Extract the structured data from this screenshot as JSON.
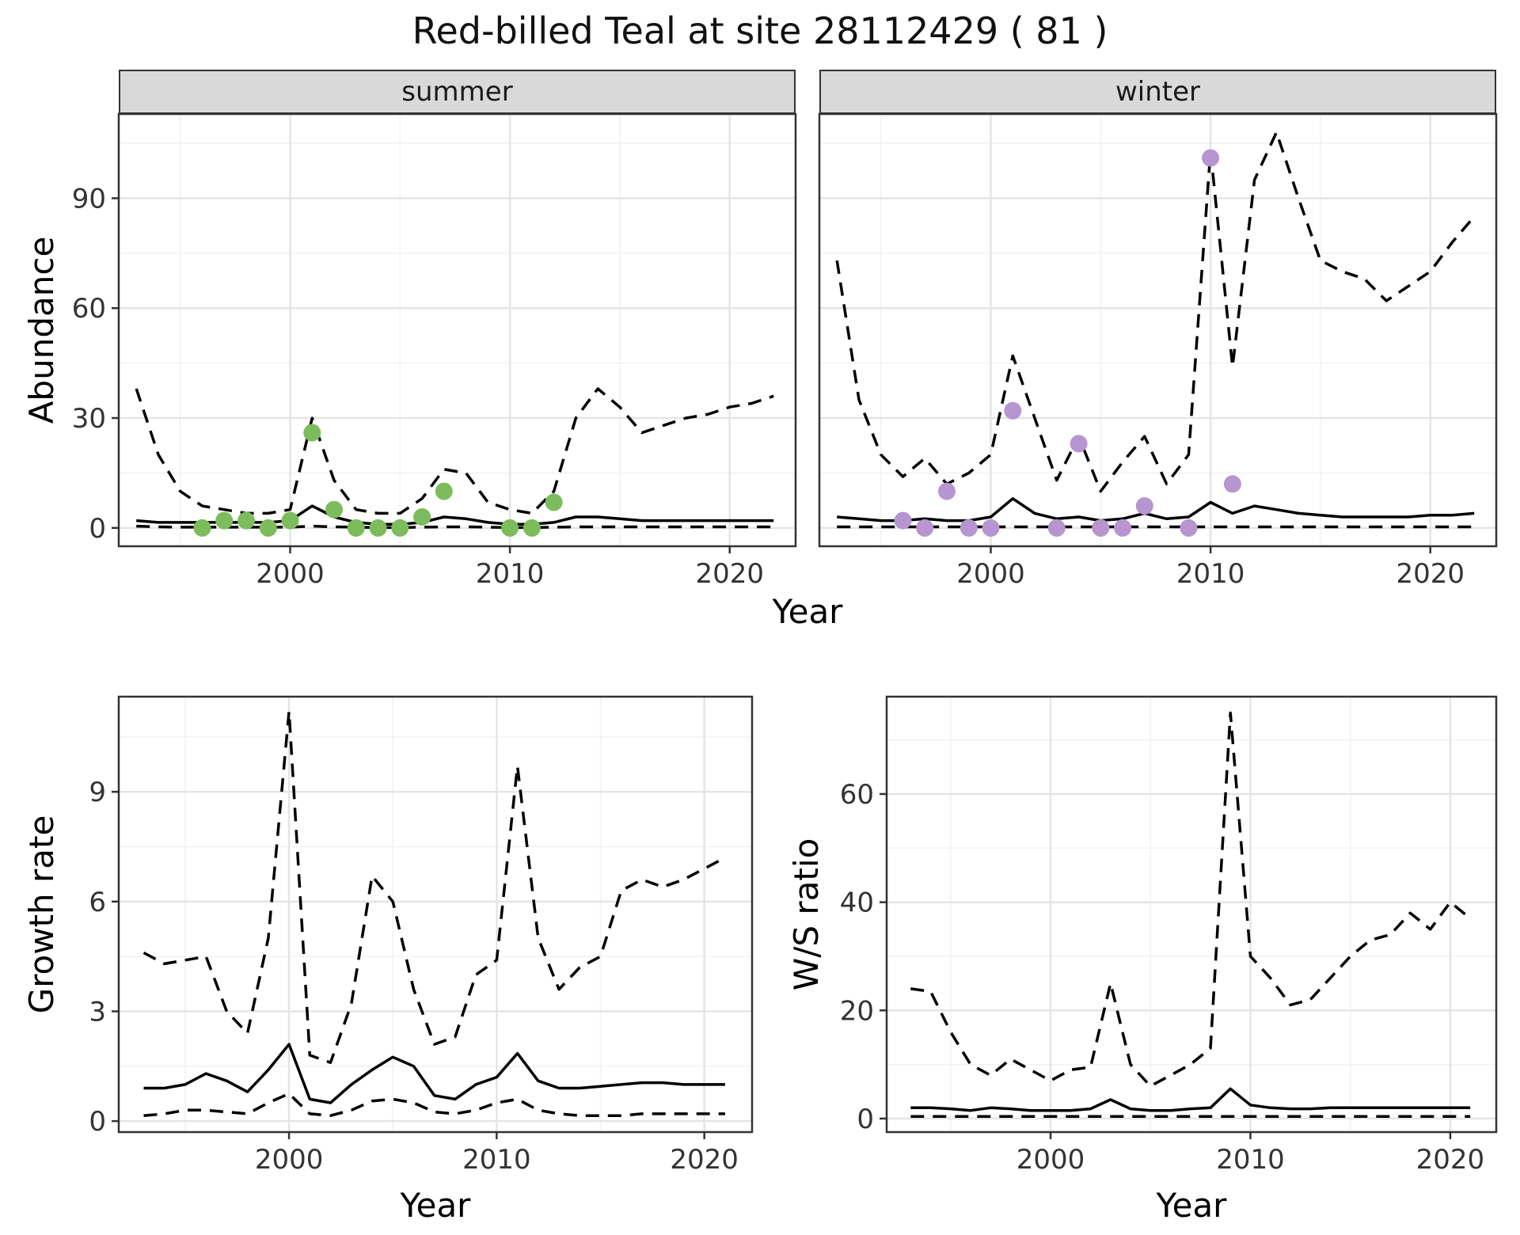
{
  "title": "Red-billed Teal at site 28112429 ( 81 )",
  "facets": [
    "summer",
    "winter"
  ],
  "colors": {
    "summer_points": "#7cbc5c",
    "winter_points": "#b795d0",
    "line": "#000000",
    "strip_bg": "#d9d9d9",
    "grid_major": "#e5e5e5",
    "grid_minor": "#f2f2f2",
    "panel_border": "#333333"
  },
  "chart_data": [
    {
      "type": "line",
      "id": "abundance_summer",
      "facet": "summer",
      "xlabel": "Year",
      "ylabel": "Abundance",
      "xlim": [
        1992.2,
        2023
      ],
      "ylim": [
        -5,
        113
      ],
      "xticks": [
        2000,
        2010,
        2020
      ],
      "yticks": [
        0,
        30,
        60,
        90
      ],
      "x": [
        1993,
        1994,
        1995,
        1996,
        1997,
        1998,
        1999,
        2000,
        2001,
        2002,
        2003,
        2004,
        2005,
        2006,
        2007,
        2008,
        2009,
        2010,
        2011,
        2012,
        2013,
        2014,
        2015,
        2016,
        2017,
        2018,
        2019,
        2020,
        2021,
        2022
      ],
      "series": [
        {
          "name": "upper_ci",
          "style": "dashed",
          "values": [
            38,
            20,
            10,
            6,
            5,
            4,
            4,
            5,
            30,
            13,
            5,
            4,
            4,
            8,
            16,
            15,
            7,
            5,
            4,
            10,
            30,
            38,
            33,
            26,
            28,
            30,
            31,
            33,
            34,
            36
          ]
        },
        {
          "name": "median",
          "style": "solid",
          "values": [
            2,
            1.5,
            1.5,
            1.5,
            1.5,
            1.5,
            1.5,
            2,
            6,
            3,
            1.5,
            1,
            1,
            1.5,
            3,
            2.5,
            1.5,
            1,
            1,
            1.5,
            3,
            3,
            2.5,
            2,
            2,
            2,
            2,
            2,
            2,
            2
          ]
        },
        {
          "name": "lower_ci",
          "style": "dashed",
          "values": [
            0.5,
            0.3,
            0.2,
            0.2,
            0.2,
            0.2,
            0.2,
            0.2,
            0.5,
            0.3,
            0.2,
            0.1,
            0.1,
            0.2,
            0.3,
            0.3,
            0.2,
            0.1,
            0.1,
            0.2,
            0.3,
            0.3,
            0.3,
            0.3,
            0.3,
            0.3,
            0.3,
            0.3,
            0.3,
            0.3
          ]
        }
      ],
      "points": {
        "name": "observed_counts",
        "color": "#7cbc5c",
        "x": [
          1996,
          1997,
          1998,
          1999,
          2000,
          2001,
          2002,
          2003,
          2004,
          2005,
          2006,
          2007,
          2010,
          2011,
          2012
        ],
        "y": [
          0,
          2,
          2,
          0,
          2,
          26,
          5,
          0,
          0,
          0,
          3,
          10,
          0,
          0,
          7
        ]
      }
    },
    {
      "type": "line",
      "id": "abundance_winter",
      "facet": "winter",
      "xlabel": "Year",
      "ylabel": "Abundance",
      "xlim": [
        1992.2,
        2023
      ],
      "ylim": [
        -5,
        113
      ],
      "xticks": [
        2000,
        2010,
        2020
      ],
      "yticks": [
        0,
        30,
        60,
        90
      ],
      "x": [
        1993,
        1994,
        1995,
        1996,
        1997,
        1998,
        1999,
        2000,
        2001,
        2002,
        2003,
        2004,
        2005,
        2006,
        2007,
        2008,
        2009,
        2010,
        2011,
        2012,
        2013,
        2014,
        2015,
        2016,
        2017,
        2018,
        2019,
        2020,
        2021,
        2022
      ],
      "series": [
        {
          "name": "upper_ci",
          "style": "dashed",
          "values": [
            73,
            35,
            20,
            14,
            19,
            12,
            15,
            20,
            47,
            30,
            13,
            25,
            10,
            18,
            25,
            12,
            20,
            103,
            44,
            95,
            108,
            90,
            73,
            70,
            68,
            62,
            66,
            70,
            78,
            85
          ]
        },
        {
          "name": "median",
          "style": "solid",
          "values": [
            3,
            2.5,
            2,
            2,
            2.5,
            2,
            2,
            3,
            8,
            4,
            2.5,
            3,
            2,
            2.5,
            4,
            2.5,
            3,
            7,
            4,
            6,
            5,
            4,
            3.5,
            3,
            3,
            3,
            3,
            3.5,
            3.5,
            4
          ]
        },
        {
          "name": "lower_ci",
          "style": "dashed",
          "values": [
            0.3,
            0.3,
            0.3,
            0.3,
            0.3,
            0.3,
            0.3,
            0.3,
            0.3,
            0.3,
            0.3,
            0.3,
            0.3,
            0.3,
            0.3,
            0.3,
            0.3,
            0.3,
            0.3,
            0.3,
            0.3,
            0.3,
            0.3,
            0.3,
            0.3,
            0.3,
            0.3,
            0.3,
            0.3,
            0.3
          ]
        }
      ],
      "points": {
        "name": "observed_counts",
        "color": "#b795d0",
        "x": [
          1996,
          1997,
          1998,
          1999,
          2000,
          2001,
          2003,
          2004,
          2005,
          2006,
          2007,
          2009,
          2010,
          2011
        ],
        "y": [
          2,
          0,
          10,
          0,
          0,
          32,
          0,
          23,
          0,
          0,
          6,
          0,
          101,
          12
        ]
      }
    },
    {
      "type": "line",
      "id": "growth_rate",
      "xlabel": "Year",
      "ylabel": "Growth rate",
      "xlim": [
        1991.8,
        2022.3
      ],
      "ylim": [
        -0.3,
        11.6
      ],
      "xticks": [
        2000,
        2010,
        2020
      ],
      "yticks": [
        0,
        3,
        6,
        9
      ],
      "x": [
        1993,
        1994,
        1995,
        1996,
        1997,
        1998,
        1999,
        2000,
        2001,
        2002,
        2003,
        2004,
        2005,
        2006,
        2007,
        2008,
        2009,
        2010,
        2011,
        2012,
        2013,
        2014,
        2015,
        2016,
        2017,
        2018,
        2019,
        2020,
        2021
      ],
      "series": [
        {
          "name": "upper_ci",
          "style": "dashed",
          "values": [
            4.6,
            4.3,
            4.4,
            4.5,
            3.0,
            2.4,
            5.0,
            11.2,
            1.8,
            1.6,
            3.2,
            6.7,
            6.0,
            3.6,
            2.1,
            2.3,
            4.0,
            4.4,
            9.7,
            5.0,
            3.6,
            4.2,
            4.5,
            6.3,
            6.6,
            6.4,
            6.6,
            6.9,
            7.2
          ]
        },
        {
          "name": "median",
          "style": "solid",
          "values": [
            0.9,
            0.9,
            1.0,
            1.3,
            1.1,
            0.8,
            1.4,
            2.1,
            0.6,
            0.5,
            1.0,
            1.4,
            1.75,
            1.5,
            0.7,
            0.6,
            1.0,
            1.2,
            1.85,
            1.1,
            0.9,
            0.9,
            0.95,
            1.0,
            1.05,
            1.05,
            1.0,
            1.0,
            1.0
          ]
        },
        {
          "name": "lower_ci",
          "style": "dashed",
          "values": [
            0.15,
            0.2,
            0.3,
            0.3,
            0.25,
            0.2,
            0.5,
            0.75,
            0.2,
            0.15,
            0.3,
            0.55,
            0.6,
            0.5,
            0.25,
            0.2,
            0.3,
            0.5,
            0.6,
            0.3,
            0.2,
            0.15,
            0.15,
            0.15,
            0.2,
            0.2,
            0.2,
            0.2,
            0.2
          ]
        }
      ]
    },
    {
      "type": "line",
      "id": "ws_ratio",
      "xlabel": "Year",
      "ylabel": "W/S ratio",
      "xlim": [
        1991.8,
        2022.3
      ],
      "ylim": [
        -2.5,
        78
      ],
      "xticks": [
        2000,
        2010,
        2020
      ],
      "yticks": [
        0,
        20,
        40,
        60
      ],
      "x": [
        1993,
        1994,
        1995,
        1996,
        1997,
        1998,
        1999,
        2000,
        2001,
        2002,
        2003,
        2004,
        2005,
        2006,
        2007,
        2008,
        2009,
        2010,
        2011,
        2012,
        2013,
        2014,
        2015,
        2016,
        2017,
        2018,
        2019,
        2020,
        2021
      ],
      "series": [
        {
          "name": "upper_ci",
          "style": "dashed",
          "values": [
            24,
            23.5,
            16,
            10,
            8,
            11,
            9,
            7,
            9,
            9.5,
            25,
            10,
            6,
            8,
            10,
            13,
            75,
            30,
            26,
            21,
            22,
            26,
            30,
            33,
            34,
            38,
            35,
            40,
            37
          ]
        },
        {
          "name": "median",
          "style": "solid",
          "values": [
            2,
            2,
            1.8,
            1.5,
            2,
            1.8,
            1.5,
            1.5,
            1.5,
            1.8,
            3.5,
            1.8,
            1.5,
            1.5,
            1.8,
            2,
            5.5,
            2.5,
            2,
            1.8,
            1.8,
            2,
            2,
            2,
            2,
            2,
            2,
            2,
            2
          ]
        },
        {
          "name": "lower_ci",
          "style": "dashed",
          "values": [
            0.4,
            0.4,
            0.4,
            0.4,
            0.4,
            0.4,
            0.4,
            0.4,
            0.4,
            0.4,
            0.4,
            0.4,
            0.4,
            0.4,
            0.4,
            0.4,
            0.4,
            0.4,
            0.4,
            0.4,
            0.4,
            0.4,
            0.4,
            0.4,
            0.4,
            0.4,
            0.4,
            0.4,
            0.4
          ]
        }
      ]
    }
  ]
}
